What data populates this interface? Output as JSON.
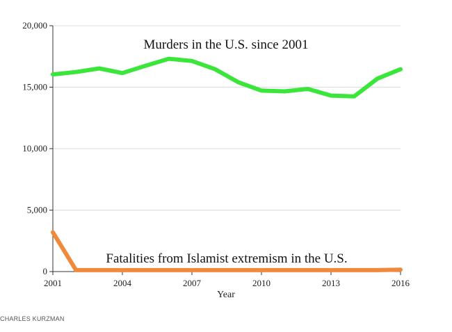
{
  "chart_data": {
    "type": "line",
    "title": "",
    "xlabel": "Year",
    "ylabel": "",
    "xlim": [
      2001,
      2016
    ],
    "ylim": [
      0,
      20000
    ],
    "x_ticks": [
      2001,
      2004,
      2007,
      2010,
      2013,
      2016
    ],
    "x_tick_labels": [
      "2001",
      "2004",
      "2007",
      "2010",
      "2013",
      "2016"
    ],
    "y_ticks": [
      0,
      5000,
      10000,
      15000,
      20000
    ],
    "y_tick_labels": [
      "0",
      "5,000",
      "10,000",
      "15,000",
      "20,000"
    ],
    "grid": "horizontal",
    "x": [
      2001,
      2002,
      2003,
      2004,
      2005,
      2006,
      2007,
      2008,
      2009,
      2010,
      2011,
      2012,
      2013,
      2014,
      2015,
      2016
    ],
    "series": [
      {
        "name": "Murders in the U.S. since 2001",
        "color": "#3ae63a",
        "values": [
          16037,
          16229,
          16528,
          16148,
          16740,
          17309,
          17128,
          16465,
          15399,
          14722,
          14661,
          14856,
          14319,
          14249,
          15696,
          16459
        ]
      },
      {
        "name": "Fatalities from Islamist extremism in the U.S.",
        "color": "#f0893a",
        "values": [
          3200,
          120,
          120,
          120,
          120,
          120,
          120,
          120,
          120,
          120,
          120,
          120,
          120,
          120,
          120,
          150
        ]
      }
    ],
    "annotations": [
      {
        "text": "Murders in the U.S. since 2001",
        "series": 0
      },
      {
        "text": "Fatalities from Islamist extremism in the U.S.",
        "series": 1
      }
    ]
  },
  "credit": "CHARLES KURZMAN"
}
